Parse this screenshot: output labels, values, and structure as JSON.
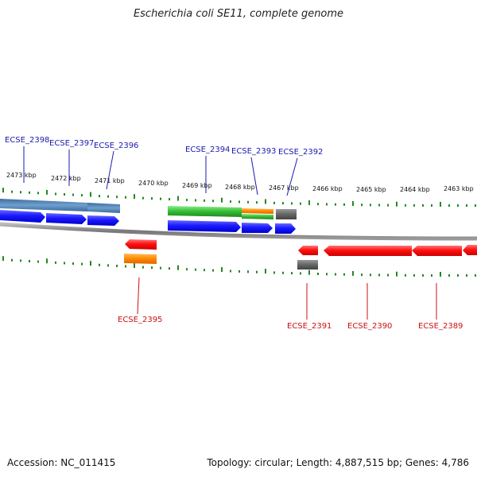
{
  "header": {
    "title": "Escherichia coli SE11, complete genome"
  },
  "footer": {
    "accession": "Accession: NC_011415",
    "summary": "Topology: circular; Length: 4,887,515 bp; Genes: 4,786"
  },
  "colors": {
    "forward_cds": "#1a1aff",
    "reverse_cds": "#ff1111",
    "forward_label": "#1a1ab0",
    "reverse_label": "#cc1111",
    "orange": "#ff8800",
    "green": "#33bb33",
    "steel": "#4477aa",
    "grey": "#666666",
    "ticks": "#228822",
    "backbone": "#888888"
  },
  "scale": {
    "ticks": [
      {
        "kbp": 2473,
        "label": "2473 kbp"
      },
      {
        "kbp": 2472,
        "label": "2472 kbp"
      },
      {
        "kbp": 2471,
        "label": "2471 kbp"
      },
      {
        "kbp": 2470,
        "label": "2470 kbp"
      },
      {
        "kbp": 2469,
        "label": "2469 kbp"
      },
      {
        "kbp": 2468,
        "label": "2468 kbp"
      },
      {
        "kbp": 2467,
        "label": "2467 kbp"
      },
      {
        "kbp": 2466,
        "label": "2466 kbp"
      },
      {
        "kbp": 2465,
        "label": "2465 kbp"
      },
      {
        "kbp": 2464,
        "label": "2464 kbp"
      },
      {
        "kbp": 2463,
        "label": "2463 kbp"
      }
    ]
  },
  "genes": {
    "forward": [
      {
        "label": "ECSE_2398"
      },
      {
        "label": "ECSE_2397"
      },
      {
        "label": "ECSE_2396"
      },
      {
        "label": "ECSE_2394"
      },
      {
        "label": "ECSE_2393"
      },
      {
        "label": "ECSE_2392"
      }
    ],
    "reverse": [
      {
        "label": "ECSE_2395"
      },
      {
        "label": "ECSE_2391"
      },
      {
        "label": "ECSE_2390"
      },
      {
        "label": "ECSE_2389"
      }
    ]
  }
}
